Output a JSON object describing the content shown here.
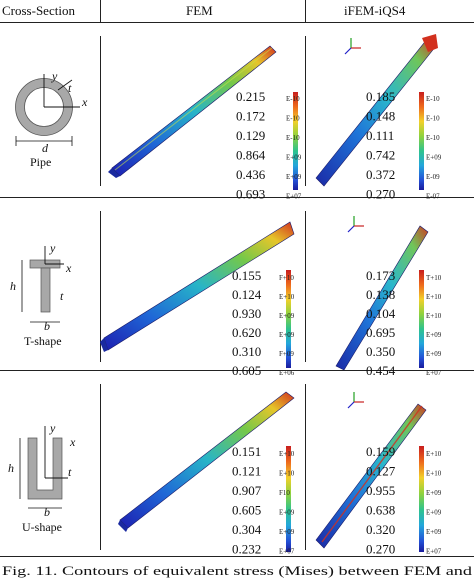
{
  "header": {
    "col1": "Cross-Section",
    "col2": "FEM",
    "col3": "iFEM-iQS4"
  },
  "rows": [
    {
      "shape": "pipe",
      "label": "Pipe",
      "dims": {
        "y": "y",
        "x": "x",
        "t": "t",
        "d": "d"
      },
      "fem": {
        "values": [
          "0.215",
          "0.172",
          "0.129",
          "0.864",
          "0.436",
          "0.693"
        ],
        "exponents": [
          "E-10",
          "E-10",
          "E-10",
          "E+09",
          "E+09",
          "E+07"
        ]
      },
      "ifem": {
        "values": [
          "0.185",
          "0.148",
          "0.111",
          "0.742",
          "0.372",
          "0.270"
        ],
        "exponents": [
          "E-10",
          "E-10",
          "E-10",
          "E+09",
          "E-09",
          "E-07"
        ]
      }
    },
    {
      "shape": "t-shape",
      "label": "T-shape",
      "dims": {
        "y": "y",
        "x": "x",
        "t": "t",
        "h": "h",
        "b": "b"
      },
      "fem": {
        "values": [
          "0.155",
          "0.124",
          "0.930",
          "0.620",
          "0.310",
          "0.605"
        ],
        "exponents": [
          "F+10",
          "E+10",
          "E+09",
          "E+09",
          "F+09",
          "E+06"
        ]
      },
      "ifem": {
        "values": [
          "0.173",
          "0.138",
          "0.104",
          "0.695",
          "0.350",
          "0.454"
        ],
        "exponents": [
          "T+10",
          "E+10",
          "E+10",
          "E+09",
          "E+09",
          "E+07"
        ]
      }
    },
    {
      "shape": "u-shape",
      "label": "U-shape",
      "dims": {
        "y": "y",
        "x": "x",
        "t": "t",
        "h": "h",
        "b": "b"
      },
      "fem": {
        "values": [
          "0.151",
          "0.121",
          "0.907",
          "0.605",
          "0.304",
          "0.232"
        ],
        "exponents": [
          "E+10",
          "E+10",
          "F10",
          "E+09",
          "E+09",
          "E+07"
        ]
      },
      "ifem": {
        "values": [
          "0.159",
          "0.127",
          "0.955",
          "0.638",
          "0.320",
          "0.270"
        ],
        "exponents": [
          "E+10",
          "E+10",
          "E+09",
          "E+09",
          "E+09",
          "E+07"
        ]
      }
    }
  ],
  "caption": "Fig. 11. Contours of equivalent stress (Mises) between FEM and"
}
